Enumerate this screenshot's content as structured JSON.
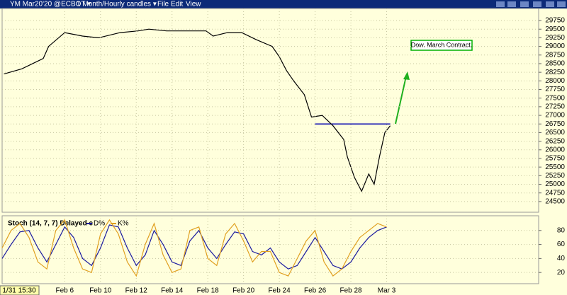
{
  "toolbar": {
    "symbol": "YM Mar20'20 @ECBOT ▾",
    "period": "1 Month/Hourly candles ▾",
    "menus": [
      "File",
      "Edit",
      "View"
    ]
  },
  "chart_data": [
    {
      "type": "line",
      "annotation": "Dow. March Contract.",
      "x": [
        0.6,
        1.6,
        2.8,
        3.1,
        4.0,
        5.0,
        5.9,
        7.1,
        8.1,
        8.7,
        9.7,
        10.7,
        11.9,
        12.3,
        13.1,
        13.9,
        14.7,
        15.6,
        16.0,
        16.4,
        16.8,
        17.4,
        17.8,
        18.4,
        19.0,
        19.6,
        19.8,
        20.2,
        20.6,
        21.0,
        21.3,
        21.6,
        21.9,
        22.2
      ],
      "series": [
        {
          "color": "#000000",
          "values": [
            28200,
            28350,
            28650,
            29000,
            29400,
            29300,
            29250,
            29400,
            29450,
            29500,
            29450,
            29450,
            29450,
            29300,
            29400,
            29400,
            29200,
            29000,
            28700,
            28300,
            28000,
            27600,
            26950,
            27000,
            26700,
            26300,
            25800,
            25200,
            24800,
            25300,
            25000,
            25800,
            26500,
            26700
          ]
        }
      ],
      "reference_line": {
        "value": 26750,
        "x": [
          18.0,
          22.2
        ],
        "color": "#0000b0"
      },
      "xlim": [
        0.5,
        30.5
      ],
      "ylim": [
        24190,
        30100
      ],
      "yticks": [
        24500,
        24750,
        25000,
        25250,
        25500,
        25750,
        26000,
        26250,
        26500,
        26750,
        27000,
        27250,
        27500,
        27750,
        28000,
        28250,
        28500,
        28750,
        29000,
        29250,
        29500,
        29750
      ],
      "grid": true
    },
    {
      "type": "line",
      "title": "Stoch (14, 7, 7) Delayed e",
      "cursor_label": "1/31 15:30",
      "x": [
        0.5,
        1,
        1.5,
        2,
        2.5,
        3,
        3.5,
        4,
        4.5,
        5,
        5.5,
        6,
        6.5,
        7,
        7.5,
        8,
        8.5,
        9,
        9.5,
        10,
        10.5,
        11,
        11.5,
        12,
        12.5,
        13,
        13.5,
        14,
        14.5,
        15,
        15.5,
        16,
        16.5,
        17,
        17.5,
        18,
        18.5,
        19,
        19.5,
        20,
        20.5,
        21,
        21.5,
        22
      ],
      "series": [
        {
          "name": "D%",
          "color": "#1a1aa0",
          "values": [
            40,
            60,
            78,
            80,
            55,
            35,
            60,
            85,
            70,
            40,
            30,
            55,
            88,
            85,
            55,
            30,
            45,
            80,
            60,
            35,
            30,
            65,
            80,
            55,
            40,
            60,
            78,
            75,
            50,
            45,
            55,
            35,
            25,
            30,
            50,
            70,
            50,
            30,
            25,
            35,
            55,
            70,
            80,
            85
          ]
        },
        {
          "name": "K%",
          "color": "#e0a020",
          "values": [
            55,
            80,
            90,
            70,
            35,
            25,
            80,
            95,
            55,
            25,
            20,
            75,
            95,
            75,
            35,
            15,
            60,
            90,
            45,
            20,
            25,
            80,
            85,
            40,
            30,
            75,
            90,
            65,
            35,
            50,
            50,
            20,
            15,
            40,
            65,
            80,
            35,
            15,
            25,
            50,
            70,
            80,
            90,
            85
          ]
        }
      ],
      "xlim": [
        0.5,
        30.5
      ],
      "ylim": [
        4,
        101
      ],
      "yticks": [
        20,
        40,
        60,
        80
      ],
      "xticks": [
        {
          "value": 4,
          "label": "Feb 6"
        },
        {
          "value": 6,
          "label": "Feb 10"
        },
        {
          "value": 8,
          "label": "Feb 12"
        },
        {
          "value": 10,
          "label": "Feb 14"
        },
        {
          "value": 12,
          "label": "Feb 18"
        },
        {
          "value": 14,
          "label": "Feb 20"
        },
        {
          "value": 16,
          "label": "Feb 24"
        },
        {
          "value": 18,
          "label": "Feb 26"
        },
        {
          "value": 20,
          "label": "Feb 28"
        },
        {
          "value": 22,
          "label": "Mar 3"
        }
      ],
      "grid": true
    }
  ]
}
